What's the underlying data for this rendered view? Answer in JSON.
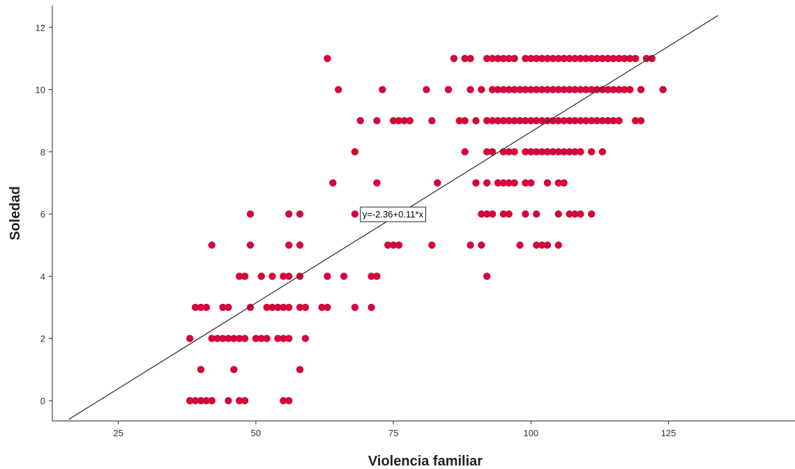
{
  "chart_data": {
    "type": "scatter",
    "xlabel": "Violencia familiar",
    "ylabel": "Soledad",
    "xlim": [
      13,
      148
    ],
    "ylim": [
      -0.65,
      12.7
    ],
    "xticks": [
      25,
      50,
      75,
      100,
      125
    ],
    "yticks": [
      0,
      2,
      4,
      6,
      8,
      10,
      12
    ],
    "grid": false,
    "point_color": "#d4073a",
    "line_color": "#333333",
    "fit_line": {
      "intercept": -2.36,
      "slope": 0.11,
      "x_start": 16,
      "x_end": 134
    },
    "annotation": {
      "text": "y=-2.36+0.11*x",
      "x": 69,
      "y": 6
    },
    "series": [
      {
        "points": [
          [
            38,
            0
          ],
          [
            39,
            0
          ],
          [
            40,
            0
          ],
          [
            41,
            0
          ],
          [
            42,
            0
          ],
          [
            45,
            0
          ],
          [
            47,
            0
          ],
          [
            48,
            0
          ],
          [
            55,
            0
          ],
          [
            56,
            0
          ],
          [
            40,
            1
          ],
          [
            46,
            1
          ],
          [
            58,
            1
          ],
          [
            38,
            2
          ],
          [
            42,
            2
          ],
          [
            43,
            2
          ],
          [
            44,
            2
          ],
          [
            45,
            2
          ],
          [
            46,
            2
          ],
          [
            47,
            2
          ],
          [
            48,
            2
          ],
          [
            50,
            2
          ],
          [
            51,
            2
          ],
          [
            52,
            2
          ],
          [
            54,
            2
          ],
          [
            55,
            2
          ],
          [
            56,
            2
          ],
          [
            59,
            2
          ],
          [
            39,
            3
          ],
          [
            40,
            3
          ],
          [
            41,
            3
          ],
          [
            44,
            3
          ],
          [
            45,
            3
          ],
          [
            49,
            3
          ],
          [
            52,
            3
          ],
          [
            53,
            3
          ],
          [
            54,
            3
          ],
          [
            55,
            3
          ],
          [
            56,
            3
          ],
          [
            58,
            3
          ],
          [
            59,
            3
          ],
          [
            62,
            3
          ],
          [
            63,
            3
          ],
          [
            68,
            3
          ],
          [
            71,
            3
          ],
          [
            47,
            4
          ],
          [
            48,
            4
          ],
          [
            51,
            4
          ],
          [
            53,
            4
          ],
          [
            55,
            4
          ],
          [
            56,
            4
          ],
          [
            58,
            4
          ],
          [
            63,
            4
          ],
          [
            66,
            4
          ],
          [
            71,
            4
          ],
          [
            72,
            4
          ],
          [
            92,
            4
          ],
          [
            42,
            5
          ],
          [
            49,
            5
          ],
          [
            56,
            5
          ],
          [
            58,
            5
          ],
          [
            74,
            5
          ],
          [
            75,
            5
          ],
          [
            76,
            5
          ],
          [
            82,
            5
          ],
          [
            89,
            5
          ],
          [
            91,
            5
          ],
          [
            98,
            5
          ],
          [
            101,
            5
          ],
          [
            102,
            5
          ],
          [
            103,
            5
          ],
          [
            105,
            5
          ],
          [
            49,
            6
          ],
          [
            56,
            6
          ],
          [
            58,
            6
          ],
          [
            68,
            6
          ],
          [
            91,
            6
          ],
          [
            92,
            6
          ],
          [
            93,
            6
          ],
          [
            95,
            6
          ],
          [
            96,
            6
          ],
          [
            99,
            6
          ],
          [
            101,
            6
          ],
          [
            105,
            6
          ],
          [
            107,
            6
          ],
          [
            108,
            6
          ],
          [
            109,
            6
          ],
          [
            111,
            6
          ],
          [
            64,
            7
          ],
          [
            72,
            7
          ],
          [
            83,
            7
          ],
          [
            90,
            7
          ],
          [
            92,
            7
          ],
          [
            94,
            7
          ],
          [
            95,
            7
          ],
          [
            96,
            7
          ],
          [
            97,
            7
          ],
          [
            99,
            7
          ],
          [
            100,
            7
          ],
          [
            103,
            7
          ],
          [
            105,
            7
          ],
          [
            106,
            7
          ],
          [
            68,
            8
          ],
          [
            88,
            8
          ],
          [
            92,
            8
          ],
          [
            93,
            8
          ],
          [
            95,
            8
          ],
          [
            96,
            8
          ],
          [
            97,
            8
          ],
          [
            99,
            8
          ],
          [
            100,
            8
          ],
          [
            101,
            8
          ],
          [
            102,
            8
          ],
          [
            103,
            8
          ],
          [
            104,
            8
          ],
          [
            105,
            8
          ],
          [
            106,
            8
          ],
          [
            107,
            8
          ],
          [
            108,
            8
          ],
          [
            109,
            8
          ],
          [
            111,
            8
          ],
          [
            113,
            8
          ],
          [
            69,
            9
          ],
          [
            72,
            9
          ],
          [
            75,
            9
          ],
          [
            76,
            9
          ],
          [
            77,
            9
          ],
          [
            78,
            9
          ],
          [
            82,
            9
          ],
          [
            87,
            9
          ],
          [
            88,
            9
          ],
          [
            90,
            9
          ],
          [
            92,
            9
          ],
          [
            93,
            9
          ],
          [
            94,
            9
          ],
          [
            95,
            9
          ],
          [
            96,
            9
          ],
          [
            97,
            9
          ],
          [
            98,
            9
          ],
          [
            99,
            9
          ],
          [
            100,
            9
          ],
          [
            101,
            9
          ],
          [
            102,
            9
          ],
          [
            103,
            9
          ],
          [
            104,
            9
          ],
          [
            105,
            9
          ],
          [
            106,
            9
          ],
          [
            107,
            9
          ],
          [
            108,
            9
          ],
          [
            109,
            9
          ],
          [
            110,
            9
          ],
          [
            111,
            9
          ],
          [
            112,
            9
          ],
          [
            113,
            9
          ],
          [
            114,
            9
          ],
          [
            115,
            9
          ],
          [
            116,
            9
          ],
          [
            119,
            9
          ],
          [
            120,
            9
          ],
          [
            65,
            10
          ],
          [
            73,
            10
          ],
          [
            81,
            10
          ],
          [
            85,
            10
          ],
          [
            89,
            10
          ],
          [
            91,
            10
          ],
          [
            93,
            10
          ],
          [
            94,
            10
          ],
          [
            95,
            10
          ],
          [
            96,
            10
          ],
          [
            97,
            10
          ],
          [
            98,
            10
          ],
          [
            99,
            10
          ],
          [
            100,
            10
          ],
          [
            101,
            10
          ],
          [
            102,
            10
          ],
          [
            103,
            10
          ],
          [
            104,
            10
          ],
          [
            105,
            10
          ],
          [
            106,
            10
          ],
          [
            107,
            10
          ],
          [
            108,
            10
          ],
          [
            109,
            10
          ],
          [
            110,
            10
          ],
          [
            111,
            10
          ],
          [
            112,
            10
          ],
          [
            113,
            10
          ],
          [
            114,
            10
          ],
          [
            115,
            10
          ],
          [
            116,
            10
          ],
          [
            117,
            10
          ],
          [
            118,
            10
          ],
          [
            120,
            10
          ],
          [
            124,
            10
          ],
          [
            63,
            11
          ],
          [
            86,
            11
          ],
          [
            88,
            11
          ],
          [
            89,
            11
          ],
          [
            92,
            11
          ],
          [
            93,
            11
          ],
          [
            94,
            11
          ],
          [
            95,
            11
          ],
          [
            96,
            11
          ],
          [
            97,
            11
          ],
          [
            99,
            11
          ],
          [
            100,
            11
          ],
          [
            101,
            11
          ],
          [
            102,
            11
          ],
          [
            103,
            11
          ],
          [
            104,
            11
          ],
          [
            105,
            11
          ],
          [
            106,
            11
          ],
          [
            107,
            11
          ],
          [
            108,
            11
          ],
          [
            109,
            11
          ],
          [
            110,
            11
          ],
          [
            111,
            11
          ],
          [
            112,
            11
          ],
          [
            113,
            11
          ],
          [
            114,
            11
          ],
          [
            115,
            11
          ],
          [
            116,
            11
          ],
          [
            117,
            11
          ],
          [
            118,
            11
          ],
          [
            119,
            11
          ],
          [
            121,
            11
          ],
          [
            122,
            11
          ]
        ]
      }
    ]
  }
}
